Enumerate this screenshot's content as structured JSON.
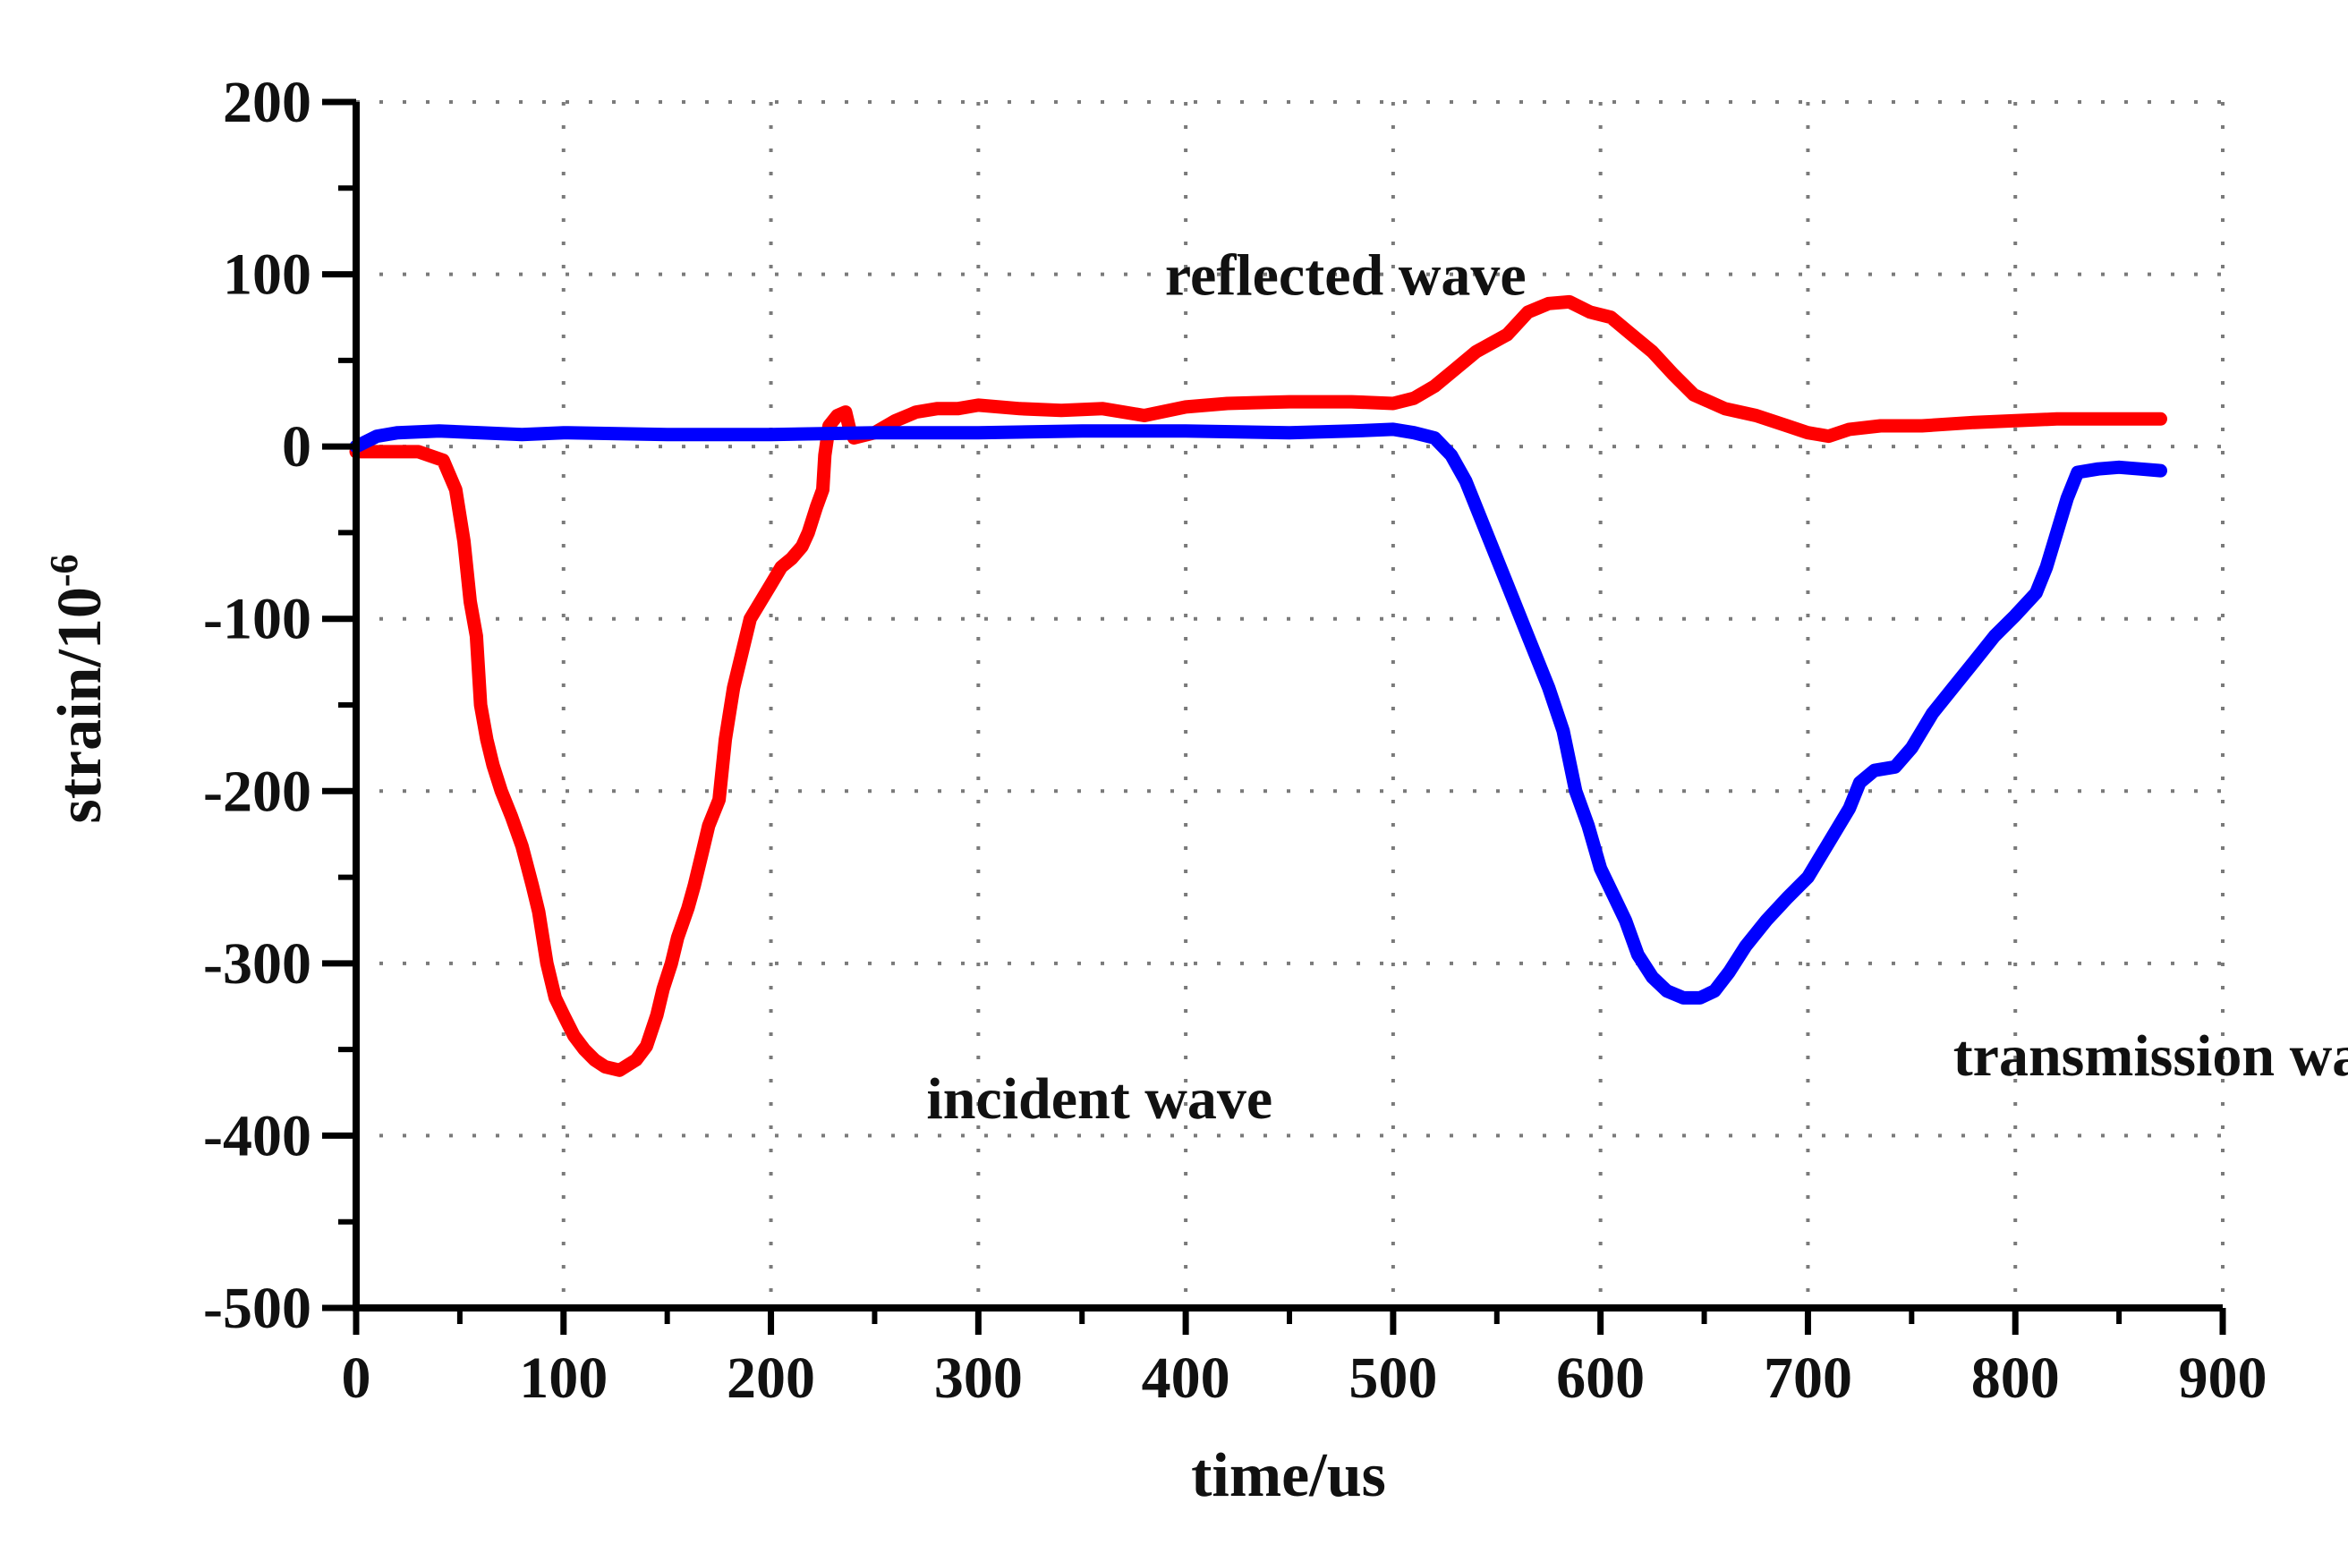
{
  "chart_data": {
    "type": "line",
    "title": "",
    "xlabel": "time/us",
    "ylabel": {
      "base": "strain/10",
      "superscript": "-6"
    },
    "xlim": [
      0,
      900
    ],
    "ylim": [
      -500,
      200
    ],
    "xticks": [
      0,
      100,
      200,
      300,
      400,
      500,
      600,
      700,
      800,
      900
    ],
    "yticks": [
      -500,
      -400,
      -300,
      -200,
      -100,
      0,
      100,
      200
    ],
    "xtick_labels": [
      "0",
      "100",
      "200",
      "300",
      "400",
      "500",
      "600",
      "700",
      "800",
      "900"
    ],
    "ytick_labels": [
      "-500",
      "-400",
      "-300",
      "-200",
      "-100",
      "0",
      "100",
      "200"
    ],
    "grid": true,
    "series": [
      {
        "name": "incident/reflected wave",
        "color": "#ff0000",
        "points": [
          [
            0,
            -3
          ],
          [
            30,
            -3
          ],
          [
            42,
            -8
          ],
          [
            48,
            -25
          ],
          [
            52,
            -55
          ],
          [
            55,
            -90
          ],
          [
            58,
            -110
          ],
          [
            60,
            -150
          ],
          [
            63,
            -170
          ],
          [
            66,
            -185
          ],
          [
            70,
            -200
          ],
          [
            75,
            -215
          ],
          [
            80,
            -232
          ],
          [
            85,
            -255
          ],
          [
            88,
            -270
          ],
          [
            92,
            -300
          ],
          [
            96,
            -320
          ],
          [
            100,
            -330
          ],
          [
            105,
            -342
          ],
          [
            110,
            -350
          ],
          [
            115,
            -356
          ],
          [
            120,
            -360
          ],
          [
            127,
            -362
          ],
          [
            135,
            -356
          ],
          [
            140,
            -348
          ],
          [
            145,
            -330
          ],
          [
            148,
            -315
          ],
          [
            152,
            -300
          ],
          [
            155,
            -285
          ],
          [
            160,
            -268
          ],
          [
            163,
            -255
          ],
          [
            167,
            -235
          ],
          [
            170,
            -220
          ],
          [
            175,
            -205
          ],
          [
            178,
            -170
          ],
          [
            182,
            -140
          ],
          [
            186,
            -120
          ],
          [
            190,
            -100
          ],
          [
            195,
            -90
          ],
          [
            200,
            -80
          ],
          [
            205,
            -70
          ],
          [
            210,
            -65
          ],
          [
            215,
            -58
          ],
          [
            218,
            -50
          ],
          [
            222,
            -35
          ],
          [
            225,
            -25
          ],
          [
            226,
            -5
          ],
          [
            228,
            12
          ],
          [
            232,
            18
          ],
          [
            236,
            20
          ],
          [
            238,
            10
          ],
          [
            240,
            5
          ],
          [
            250,
            8
          ],
          [
            260,
            15
          ],
          [
            270,
            20
          ],
          [
            280,
            22
          ],
          [
            290,
            22
          ],
          [
            300,
            24
          ],
          [
            320,
            22
          ],
          [
            340,
            21
          ],
          [
            360,
            22
          ],
          [
            380,
            18
          ],
          [
            400,
            23
          ],
          [
            420,
            25
          ],
          [
            450,
            26
          ],
          [
            480,
            26
          ],
          [
            500,
            25
          ],
          [
            510,
            28
          ],
          [
            520,
            35
          ],
          [
            530,
            45
          ],
          [
            540,
            55
          ],
          [
            555,
            65
          ],
          [
            565,
            78
          ],
          [
            575,
            83
          ],
          [
            585,
            84
          ],
          [
            595,
            78
          ],
          [
            605,
            75
          ],
          [
            615,
            65
          ],
          [
            625,
            55
          ],
          [
            635,
            42
          ],
          [
            645,
            30
          ],
          [
            660,
            22
          ],
          [
            675,
            18
          ],
          [
            690,
            12
          ],
          [
            700,
            8
          ],
          [
            710,
            6
          ],
          [
            720,
            10
          ],
          [
            735,
            12
          ],
          [
            755,
            12
          ],
          [
            780,
            14
          ],
          [
            800,
            15
          ],
          [
            820,
            16
          ],
          [
            850,
            16
          ],
          [
            870,
            16
          ]
        ]
      },
      {
        "name": "transmission wave",
        "color": "#0000ff",
        "points": [
          [
            0,
            0
          ],
          [
            10,
            6
          ],
          [
            20,
            8
          ],
          [
            40,
            9
          ],
          [
            60,
            8
          ],
          [
            80,
            7
          ],
          [
            100,
            8
          ],
          [
            150,
            7
          ],
          [
            200,
            7
          ],
          [
            250,
            8
          ],
          [
            300,
            8
          ],
          [
            350,
            9
          ],
          [
            400,
            9
          ],
          [
            450,
            8
          ],
          [
            480,
            9
          ],
          [
            500,
            10
          ],
          [
            510,
            8
          ],
          [
            520,
            5
          ],
          [
            528,
            -5
          ],
          [
            535,
            -20
          ],
          [
            545,
            -50
          ],
          [
            555,
            -80
          ],
          [
            565,
            -110
          ],
          [
            575,
            -140
          ],
          [
            582,
            -165
          ],
          [
            588,
            -200
          ],
          [
            594,
            -220
          ],
          [
            600,
            -245
          ],
          [
            606,
            -260
          ],
          [
            612,
            -275
          ],
          [
            618,
            -295
          ],
          [
            625,
            -308
          ],
          [
            632,
            -316
          ],
          [
            640,
            -320
          ],
          [
            648,
            -320
          ],
          [
            655,
            -316
          ],
          [
            662,
            -305
          ],
          [
            670,
            -290
          ],
          [
            680,
            -275
          ],
          [
            690,
            -262
          ],
          [
            700,
            -250
          ],
          [
            710,
            -230
          ],
          [
            720,
            -210
          ],
          [
            725,
            -195
          ],
          [
            732,
            -188
          ],
          [
            742,
            -186
          ],
          [
            750,
            -175
          ],
          [
            760,
            -155
          ],
          [
            770,
            -140
          ],
          [
            780,
            -125
          ],
          [
            790,
            -110
          ],
          [
            800,
            -98
          ],
          [
            810,
            -85
          ],
          [
            815,
            -70
          ],
          [
            820,
            -50
          ],
          [
            825,
            -30
          ],
          [
            830,
            -15
          ],
          [
            840,
            -13
          ],
          [
            850,
            -12
          ],
          [
            860,
            -13
          ],
          [
            870,
            -14
          ]
        ]
      }
    ],
    "annotations": [
      {
        "text": "reflected wave",
        "x": 390,
        "y": 88
      },
      {
        "text": "incident wave",
        "x": 275,
        "y": -390
      },
      {
        "text": "transmission wave",
        "x": 770,
        "y": -365
      }
    ]
  }
}
